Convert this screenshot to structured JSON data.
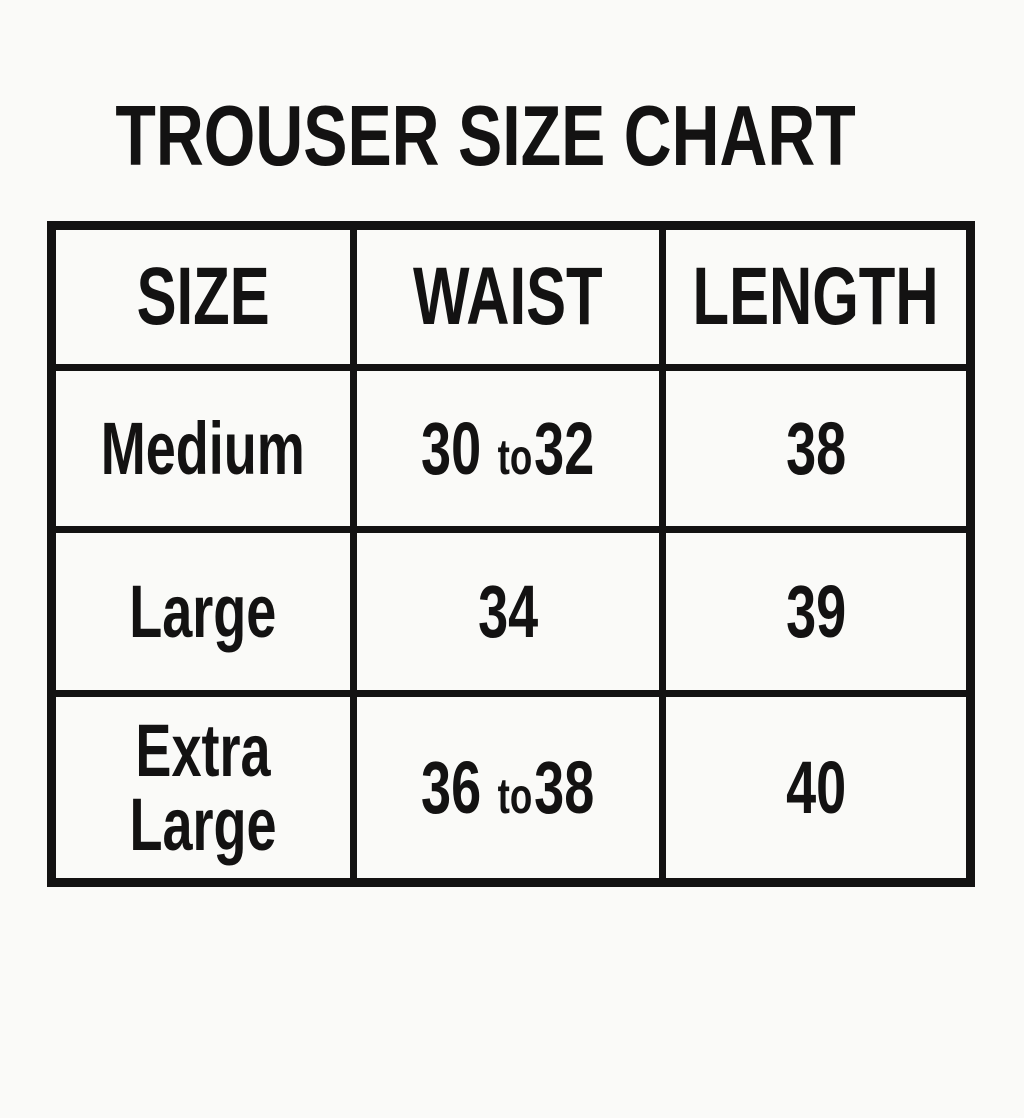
{
  "colors": {
    "background": "#fafaf8",
    "ink": "#131212"
  },
  "chart_data": {
    "type": "table",
    "title": "TROUSER SIZE CHART",
    "columns": [
      "SIZE",
      "WAIST",
      "LENGTH"
    ],
    "rows": [
      [
        "Medium",
        "30 to 32",
        "38"
      ],
      [
        "Large",
        "34",
        "39"
      ],
      [
        "Extra Large",
        "36 to 38",
        "40"
      ]
    ],
    "range_separator_word": "to"
  }
}
